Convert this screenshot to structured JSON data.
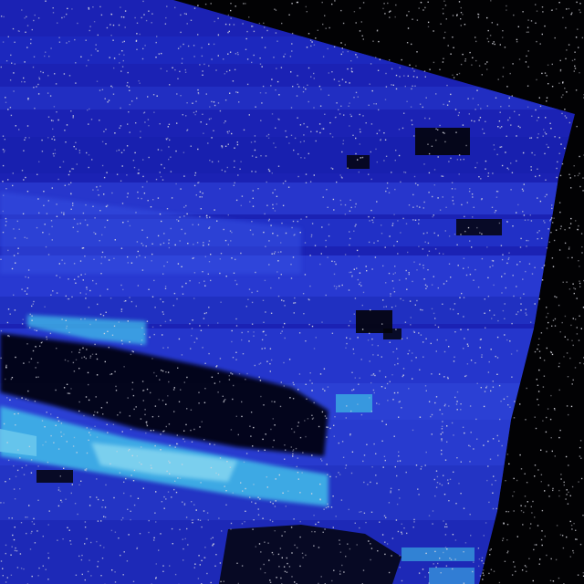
{
  "image": {
    "description_free": true,
    "palette": {
      "background": "#020204",
      "deep_blue": "#1a22b8",
      "mid_blue": "#2a3ad0",
      "bright_blue": "#3a55e6",
      "cyan": "#3fb6e8",
      "pale_cyan": "#8fdcf2",
      "shadow": "#03030a",
      "speckle": "#d8d8e0"
    }
  }
}
